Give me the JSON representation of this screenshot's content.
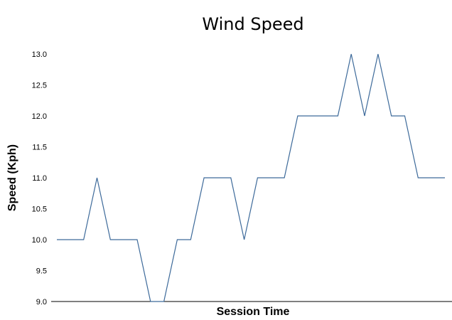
{
  "chart_data": {
    "type": "line",
    "title": "Wind Speed",
    "xlabel": "Session Time",
    "ylabel": "Speed (Kph)",
    "ylim": [
      9.0,
      13.0
    ],
    "yticks": [
      "9.0",
      "9.5",
      "10.0",
      "10.5",
      "11.0",
      "11.5",
      "12.0",
      "12.5",
      "13.0"
    ],
    "grid": false,
    "legend": "none",
    "line_color": "#3d6a9a",
    "x": [
      1,
      2,
      3,
      4,
      5,
      6,
      7,
      8,
      9,
      10,
      11,
      12,
      13,
      14,
      15,
      16,
      17,
      18,
      19,
      20,
      21,
      22,
      23,
      24,
      25,
      26,
      27,
      28,
      29,
      30
    ],
    "series": [
      {
        "values": [
          10,
          10,
          10,
          11,
          10,
          10,
          10,
          9,
          9,
          10,
          10,
          11,
          11,
          11,
          10,
          11,
          11,
          11,
          12,
          12,
          12,
          12,
          13,
          12,
          13,
          12,
          12,
          11,
          11,
          11
        ]
      }
    ]
  }
}
